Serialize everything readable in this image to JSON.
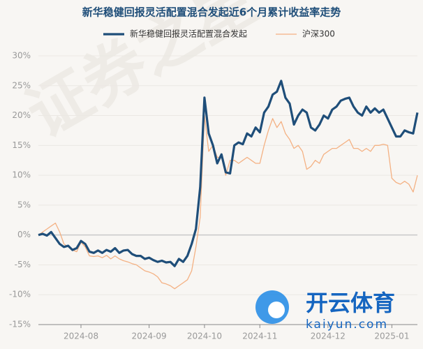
{
  "chart_data": {
    "type": "line",
    "title": "新华稳健回报灵活配置混合发起近6个月累计收益率走势",
    "categories": [
      null,
      null,
      null,
      null,
      null,
      null,
      null,
      null,
      null,
      null,
      "2024-08",
      null,
      null,
      null,
      null,
      null,
      null,
      null,
      null,
      null,
      null,
      null,
      null,
      null,
      null,
      null,
      "2024-09",
      null,
      null,
      null,
      null,
      null,
      null,
      null,
      null,
      null,
      null,
      null,
      null,
      "2024-10",
      null,
      null,
      null,
      null,
      null,
      null,
      null,
      null,
      null,
      null,
      null,
      null,
      "2024-11",
      null,
      null,
      null,
      null,
      null,
      null,
      null,
      null,
      null,
      null,
      null,
      null,
      null,
      null,
      null,
      "2024-12",
      null,
      null,
      null,
      null,
      null,
      null,
      null,
      null,
      null,
      null,
      null,
      null,
      null,
      null,
      "2025-01",
      null,
      null,
      null,
      null,
      null,
      null
    ],
    "series": [
      {
        "name": "新华稳健回报灵活配置混合发起",
        "color": "#1f4e79",
        "width": 3.2,
        "values": [
          0,
          0.2,
          -0.1,
          0.5,
          -0.5,
          -1.5,
          -2,
          -1.8,
          -2.5,
          -2.2,
          -1,
          -1.5,
          -2.8,
          -3,
          -2.6,
          -3,
          -2.5,
          -2.8,
          -2.2,
          -3,
          -2.6,
          -2.5,
          -3.2,
          -3.5,
          -3.5,
          -4,
          -3.8,
          -4.2,
          -4.5,
          -4.3,
          -4.6,
          -4.5,
          -5.2,
          -4,
          -4.5,
          -3.5,
          -1.5,
          1,
          8,
          23,
          17,
          15,
          12,
          13.5,
          10.5,
          10.3,
          15,
          15.5,
          15.2,
          17,
          16.5,
          18,
          17.2,
          20.5,
          21.5,
          23.5,
          24,
          25.8,
          23,
          22,
          18.5,
          20,
          21,
          20.5,
          18,
          17.5,
          18.5,
          20,
          19.5,
          21,
          21.5,
          22.5,
          22.8,
          23,
          21.5,
          20.5,
          20,
          21.5,
          20.5,
          21.2,
          20.5,
          21,
          19.5,
          18,
          16.5,
          16.5,
          17.5,
          17.2,
          17,
          20.5
        ]
      },
      {
        "name": "沪深300",
        "color": "#f4b183",
        "width": 1.3,
        "values": [
          0,
          0.5,
          1,
          1.5,
          2,
          0.5,
          -1.5,
          -2,
          -2.5,
          -2.8,
          -1.2,
          -2,
          -3.5,
          -3.6,
          -3.5,
          -3.8,
          -3.4,
          -4,
          -3.5,
          -4,
          -4.3,
          -4.5,
          -4.8,
          -5,
          -5.5,
          -6,
          -6.2,
          -6.5,
          -7,
          -8,
          -8.2,
          -8.5,
          -9,
          -8.5,
          -8,
          -7.5,
          -6,
          -2,
          3,
          20,
          14,
          15,
          13,
          13,
          10,
          12.5,
          12.5,
          12,
          12.5,
          13,
          12.5,
          12,
          12,
          15,
          17.5,
          19.5,
          18,
          19,
          17,
          16,
          14.5,
          15,
          14,
          11,
          11.5,
          12.5,
          12,
          13.5,
          14,
          14.5,
          14.5,
          15,
          15.5,
          16,
          14.5,
          14.5,
          14,
          14.5,
          14,
          15,
          15,
          15.2,
          15,
          9.5,
          8.8,
          8.5,
          9,
          8.5,
          7.2,
          10
        ]
      }
    ],
    "ylim": [
      -15,
      30
    ],
    "yticks": [
      {
        "value": -15,
        "label": "-15%"
      },
      {
        "value": -10,
        "label": "-10%"
      },
      {
        "value": -5,
        "label": "-5%"
      },
      {
        "value": 0,
        "label": "0%"
      },
      {
        "value": 5,
        "label": "5%"
      },
      {
        "value": 10,
        "label": "10%"
      },
      {
        "value": 15,
        "label": "15%"
      },
      {
        "value": 20,
        "label": "20%"
      },
      {
        "value": 25,
        "label": "25%"
      },
      {
        "value": 30,
        "label": "30%"
      }
    ],
    "grid": true,
    "watermark": "证券之星",
    "logo": {
      "name": "开云体育",
      "site": "kaiyun.com"
    }
  }
}
